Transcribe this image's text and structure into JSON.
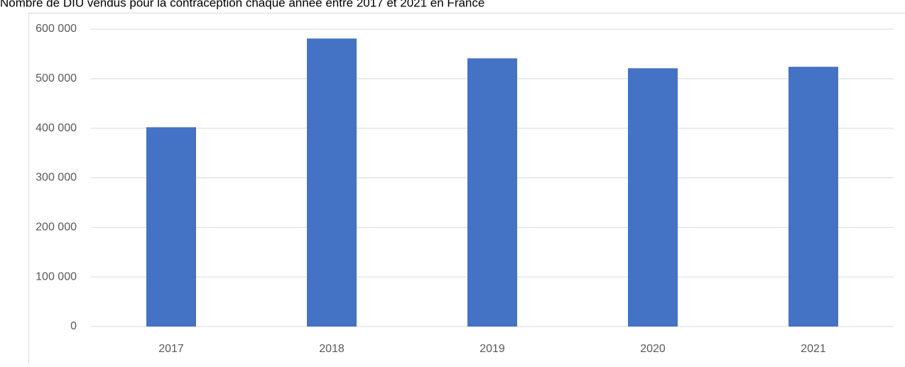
{
  "chart_data": {
    "type": "bar",
    "title": "Nombre de DIU vendus pour la contraception chaque année entre 2017 et 2021 en France",
    "categories": [
      "2017",
      "2018",
      "2019",
      "2020",
      "2021"
    ],
    "values": [
      402000,
      581000,
      541000,
      521000,
      524000
    ],
    "color": "#4472c4",
    "ylim": [
      0,
      600000
    ],
    "yticks": [
      0,
      {
        "value": 100000,
        "label": "100 000"
      },
      {
        "value": 200000,
        "label": "200 000"
      },
      {
        "value": 300000,
        "label": "300 000"
      },
      {
        "value": 400000,
        "label": "400 000"
      },
      {
        "value": 500000,
        "label": "500 000"
      },
      {
        "value": 600000,
        "label": "600 000"
      }
    ],
    "grid": true
  }
}
